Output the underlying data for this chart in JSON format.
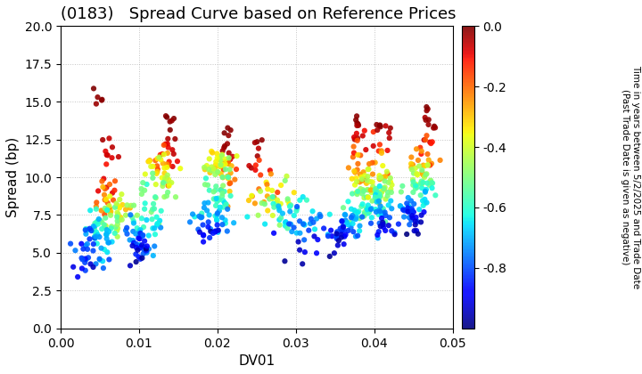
{
  "title": "(0183)   Spread Curve based on Reference Prices",
  "xlabel": "DV01",
  "ylabel": "Spread (bp)",
  "xlim": [
    0.0,
    0.05
  ],
  "ylim": [
    0.0,
    20.0
  ],
  "cbar_label_line1": "Time in years between 5/2/2025 and Trade Date",
  "cbar_label_line2": "(Past Trade Date is given as negative)",
  "cbar_ticks": [
    0.0,
    -0.2,
    -0.4,
    -0.6,
    -0.8
  ],
  "vmin": -1.0,
  "vmax": 0.0,
  "background_color": "#ffffff",
  "grid_color": "#aaaaaa",
  "title_fontsize": 13,
  "axis_fontsize": 11,
  "tick_fontsize": 10,
  "marker_size": 20,
  "seed": 42
}
